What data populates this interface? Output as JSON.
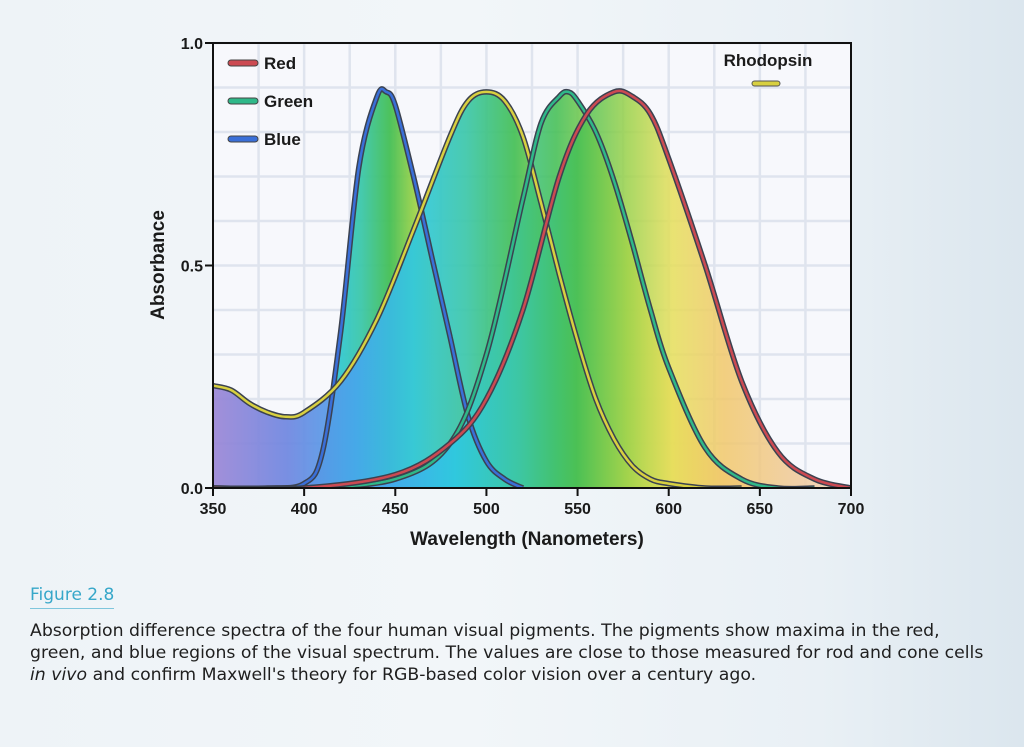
{
  "chart_data": {
    "type": "area",
    "xlabel": "Wavelength (Nanometers)",
    "ylabel": "Absorbance",
    "xlim": [
      350,
      700
    ],
    "ylim": [
      0,
      1.0
    ],
    "x_ticks": [
      "350",
      "400",
      "450",
      "500",
      "550",
      "600",
      "650",
      "700"
    ],
    "y_ticks": [
      "0.0",
      "0.5",
      "1.0"
    ],
    "grid": true,
    "legend": {
      "placement": "top-left",
      "entries": [
        "Red",
        "Green",
        "Blue"
      ]
    },
    "rhodopsin_label": "Rhodopsin",
    "series": [
      {
        "name": "Blue",
        "color": "#3a6fd8",
        "x": [
          350,
          380,
          400,
          410,
          420,
          430,
          440,
          445,
          450,
          460,
          470,
          480,
          490,
          500,
          510,
          520
        ],
        "y": [
          0.0,
          0.0,
          0.01,
          0.08,
          0.35,
          0.72,
          0.88,
          0.89,
          0.86,
          0.7,
          0.52,
          0.34,
          0.16,
          0.06,
          0.02,
          0.0
        ]
      },
      {
        "name": "Rhodopsin",
        "color": "#d8d040",
        "x": [
          350,
          360,
          370,
          380,
          390,
          400,
          420,
          440,
          460,
          480,
          490,
          500,
          510,
          520,
          530,
          540,
          550,
          560,
          570,
          580,
          590,
          600,
          620,
          640
        ],
        "y": [
          0.23,
          0.22,
          0.19,
          0.17,
          0.16,
          0.17,
          0.24,
          0.38,
          0.58,
          0.79,
          0.87,
          0.89,
          0.87,
          0.79,
          0.64,
          0.48,
          0.33,
          0.2,
          0.11,
          0.05,
          0.02,
          0.01,
          0.0,
          0.0
        ]
      },
      {
        "name": "Green",
        "color": "#2fb889",
        "x": [
          350,
          400,
          450,
          480,
          500,
          520,
          530,
          540,
          545,
          550,
          560,
          570,
          580,
          590,
          600,
          620,
          640,
          660,
          680
        ],
        "y": [
          0.0,
          0.0,
          0.02,
          0.1,
          0.3,
          0.65,
          0.82,
          0.88,
          0.89,
          0.87,
          0.8,
          0.69,
          0.55,
          0.4,
          0.27,
          0.09,
          0.02,
          0.0,
          0.0
        ]
      },
      {
        "name": "Red",
        "color": "#cc4a52",
        "x": [
          350,
          400,
          450,
          480,
          500,
          520,
          540,
          555,
          570,
          580,
          590,
          600,
          620,
          640,
          660,
          680,
          700
        ],
        "y": [
          0.0,
          0.0,
          0.03,
          0.1,
          0.2,
          0.4,
          0.7,
          0.84,
          0.89,
          0.88,
          0.84,
          0.74,
          0.5,
          0.24,
          0.08,
          0.02,
          0.0
        ]
      }
    ]
  },
  "caption": {
    "figure_label": "Figure 2.8",
    "text": "Absorption difference spectra of the four human visual pigments. The pigments show maxima in the red, green, and blue regions of the visual spectrum. The values are close to those measured for rod and cone cells in vivo and confirm Maxwell's theory for RGB-based color vision over a century ago."
  }
}
